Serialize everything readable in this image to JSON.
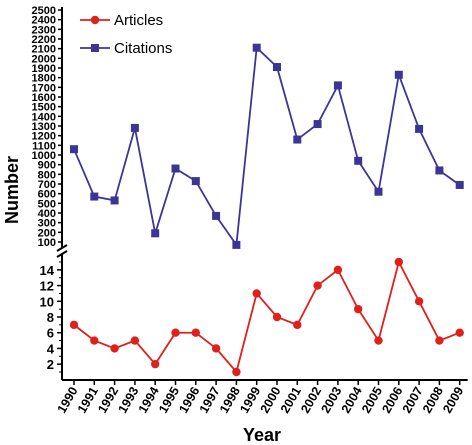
{
  "chart_data": {
    "type": "line",
    "xlabel": "Year",
    "ylabel": "Number",
    "categories": [
      "1990",
      "1991",
      "1992",
      "1993",
      "1994",
      "1995",
      "1996",
      "1997",
      "1998",
      "1999",
      "2000",
      "2001",
      "2002",
      "2003",
      "2004",
      "2005",
      "2006",
      "2007",
      "2008",
      "2009"
    ],
    "series": [
      {
        "name": "Articles",
        "color": "#e0201b",
        "marker": "circle",
        "values": [
          7,
          5,
          4,
          5,
          2,
          6,
          6,
          4,
          1,
          11,
          8,
          7,
          12,
          14,
          9,
          5,
          15,
          10,
          5,
          6
        ]
      },
      {
        "name": "Citations",
        "color": "#3d3596",
        "marker": "square",
        "values": [
          1060,
          570,
          530,
          1280,
          190,
          860,
          730,
          370,
          70,
          2110,
          1910,
          1160,
          1320,
          1720,
          940,
          620,
          1830,
          1270,
          840,
          690
        ]
      }
    ],
    "upper_axis": {
      "ylim": [
        100,
        2500
      ],
      "ticks": [
        "100",
        "200",
        "300",
        "400",
        "500",
        "600",
        "700",
        "800",
        "900",
        "1000",
        "1100",
        "1200",
        "1300",
        "1400",
        "1500",
        "1600",
        "1700",
        "1800",
        "1900",
        "2000",
        "2100",
        "2200",
        "2300",
        "2400",
        "2500"
      ]
    },
    "lower_axis": {
      "ylim": [
        1,
        15
      ],
      "ticks": [
        "2",
        "4",
        "6",
        "8",
        "10",
        "12",
        "14"
      ]
    },
    "grid": false,
    "legend_position": "top-left",
    "broken_y_axis": true
  }
}
